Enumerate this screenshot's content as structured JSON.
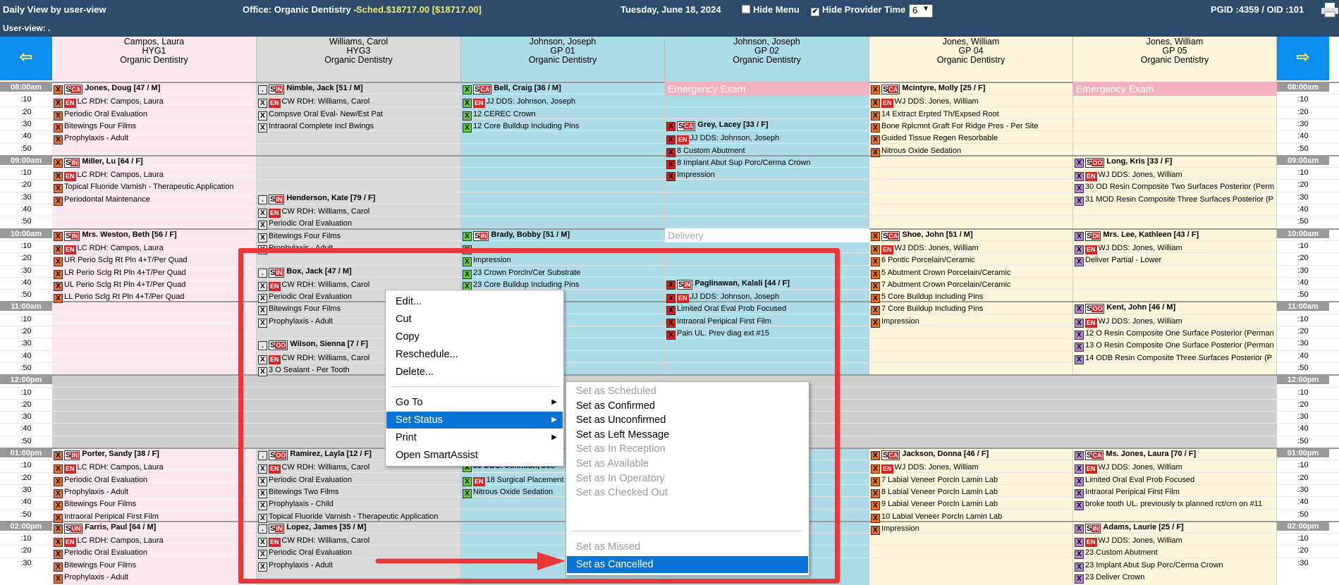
{
  "topbar": {
    "view_title": "Daily View by user-view",
    "office_label": "Office: Organic Dentistry -",
    "sched_label": "Sched.$18717.00 [$18717.00]",
    "date": "Tuesday, June 18, 2024",
    "hide_menu": "Hide Menu",
    "hide_menu_checked": false,
    "hide_provider_time": "Hide Provider Time",
    "hide_provider_checked": true,
    "columns_select": "6",
    "ids": "PGID :4359  /  OID :101",
    "user_view": "User-view: .",
    "nav_left": "⇦",
    "nav_right": "⇨"
  },
  "columns": [
    {
      "name": "Campos, Laura",
      "code": "HYG1",
      "office": "Organic Dentistry",
      "bg": "#fce8f0"
    },
    {
      "name": "Williams, Carol",
      "code": "HYG3",
      "office": "Organic Dentistry",
      "bg": "#d9d9d9"
    },
    {
      "name": "Johnson, Joseph",
      "code": "GP 01",
      "office": "Organic Dentistry",
      "bg": "#acdde6"
    },
    {
      "name": "Johnson, Joseph",
      "code": "GP 02",
      "office": "Organic Dentistry",
      "bg": "#acdde6"
    },
    {
      "name": "Jones, William",
      "code": "GP 04",
      "office": "Organic Dentistry",
      "bg": "#fdf6dc"
    },
    {
      "name": "Jones, William",
      "code": "GP 05",
      "office": "Organic Dentistry",
      "bg": "#fdf6dc"
    }
  ],
  "times": [
    "08:00am",
    ":10",
    ":20",
    ":30",
    ":40",
    ":50",
    "09:00am",
    ":10",
    ":20",
    ":30",
    ":40",
    ":50",
    "10:00am",
    ":10",
    ":20",
    ":30",
    ":40",
    ":50",
    "11:00am",
    ":10",
    ":20",
    ":30",
    ":40",
    ":50",
    "12:00pm",
    ":10",
    ":20",
    ":30",
    ":40",
    ":50",
    "01:00pm",
    ":10",
    ":20",
    ":30",
    ":40",
    ":50",
    "02:00pm",
    ":10",
    ":20",
    ":30"
  ],
  "appointments": [
    {
      "col": 0,
      "row": 0,
      "lines": [
        "Jones, Doug [47 / M]",
        "LC RDH: Campos, Laura",
        "Periodic Oral Evaluation",
        "Bitewings Four Films",
        "Prophylaxis - Adult"
      ],
      "badge": "CA"
    },
    {
      "col": 0,
      "row": 6,
      "lines": [
        "Miller, Lu [64 / F]",
        "LC RDH: Campos, Laura",
        "Topical Fluoride Varnish - Therapeutic Application",
        "Periodontal Maintenance"
      ],
      "badge": "IN"
    },
    {
      "col": 0,
      "row": 12,
      "lines": [
        "Mrs. Weston, Beth [56 / F]",
        "LC RDH: Campos, Laura",
        "UR Perio Sclg Rt Pln 4+T/Per Quad",
        "LR Perio Sclg Rt Pln 4+T/Per Quad",
        "UL Perio Sclg Rt Pln 4+T/Per Quad",
        "LL Perio Sclg Rt Pln 4+T/Per Quad"
      ],
      "badge": "IN"
    },
    {
      "col": 0,
      "row": 30,
      "lines": [
        "Porter, Sandy [38 / F]",
        "LC RDH: Campos, Laura",
        "Periodic Oral Evaluation",
        "Prophylaxis - Adult",
        "Bitewings Four Films",
        "Intraoral Peripical First Film"
      ],
      "badge": "IN"
    },
    {
      "col": 0,
      "row": 36,
      "lines": [
        "Farris, Paul [64 / M]",
        "LC RDH: Campos, Laura",
        "Periodic Oral Evaluation",
        "Bitewings Four Films",
        "Prophylaxis - Adult"
      ],
      "badge": "UN"
    },
    {
      "col": 1,
      "row": 0,
      "lines": [
        "Nimble, Jack [51 / M]",
        "CW RDH: Williams, Carol",
        "Compsve Oral Eval- New/Est Pat",
        "Intraoral Complete Incl Bwings"
      ],
      "badge": "IN"
    },
    {
      "col": 1,
      "row": 9,
      "lines": [
        "Henderson, Kate [79 / F]",
        "CW RDH: Williams, Carol",
        "Periodic Oral Evaluation",
        "Bitewings Four Films",
        "Prophylaxis - Adult"
      ],
      "badge": "IN"
    },
    {
      "col": 1,
      "row": 15,
      "lines": [
        "Box, Jack [47 / M]",
        "CW RDH: Williams, Carol",
        "Periodic Oral Evaluation",
        "Bitewings Four Films",
        "Prophylaxis - Adult"
      ],
      "badge": "IN"
    },
    {
      "col": 1,
      "row": 21,
      "lines": [
        "Wilson, Sienna [7 / F]",
        "CW RDH: Williams, Carol",
        "3 O Sealant - Per Tooth"
      ],
      "badge": "OO"
    },
    {
      "col": 1,
      "row": 30,
      "lines": [
        "Ramirez, Layla [12 / F]",
        "CW RDH: Williams, Carol",
        "Periodic Oral Evaluation",
        "Bitewings Two Films",
        "Prophylaxis - Child",
        "Topical Fluoride Varnish - Therapeutic Application"
      ],
      "badge": "OO"
    },
    {
      "col": 1,
      "row": 36,
      "lines": [
        "Lopez, James [35 / M]",
        "CW RDH: Williams, Carol",
        "Periodic Oral Evaluation",
        "Prophylaxis - Adult"
      ],
      "badge": "IN"
    },
    {
      "col": 2,
      "row": 0,
      "lines": [
        "Bell, Craig [36 / M]",
        "JJ DDS: Johnson, Joseph",
        "12 CEREC Crown",
        "12 Core Buildup Including Pins"
      ],
      "badge": "CA"
    },
    {
      "col": 2,
      "row": 12,
      "lines": [
        "Brady, Bobby [51 / M]",
        "",
        "Impression",
        "23 Crown Porcln/Cer Substrate",
        "23 Core Buildup Including Pins"
      ],
      "badge": "IN"
    },
    {
      "col": 2,
      "row": 31,
      "lines": [
        "JJ DDS: Johnson, Jos",
        "18 Surgical Placement Im",
        "Nitrous Oxide Sedation"
      ],
      "badge": ""
    },
    {
      "col": 3,
      "row": 3,
      "lines": [
        "Grey, Lacey [33 / F]",
        "JJ DDS: Johnson, Joseph",
        "8 Custom Abutment",
        "8 Implant Abut Sup Porc/Cerma Crown",
        "Impression"
      ],
      "badge": "CA"
    },
    {
      "col": 3,
      "row": 16,
      "lines": [
        "Paglinawan, Kalali [44 / F]",
        "JJ DDS: Johnson, Joseph",
        "Limited Oral Eval Prob Focused",
        "Intraoral Peripical First Film",
        "Pain UL. Prev diag ext #15"
      ],
      "badge": "IN"
    },
    {
      "col": 4,
      "row": 0,
      "lines": [
        "Mcintyre, Molly [25 / F]",
        "WJ DDS: Jones, William",
        "14 Extract Erpted Th/Expsed Root",
        "Bone Rplcmnt Graft For Ridge Pres - Per Site",
        "Guided Tissue Regen Resorbable",
        "Nitrous Oxide Sedation"
      ],
      "badge": "CA"
    },
    {
      "col": 4,
      "row": 12,
      "lines": [
        "Shoe, John [51 / M]",
        "WJ DDS: Jones, William",
        "6 Pontic Porcelain/Ceramic",
        "5 Abutment Crown Porcelain/Ceramic",
        "7 Abutment Crown Porcelain/Ceramic",
        "5 Core Buildup Including Pins",
        "7 Core Buildup Including Pins",
        "Impression"
      ],
      "badge": "CA"
    },
    {
      "col": 4,
      "row": 30,
      "lines": [
        "Jackson, Donna [46 / F]",
        "WJ DDS: Jones, William",
        "7 Labial Veneer Porcln Lamin Lab",
        "8 Labial Veneer Porcln Lamin Lab",
        "9 Labial Veneer Porcln Lamin Lab",
        "10 Labial Veneer Porcln Lamin Lab",
        "Impression"
      ],
      "badge": "CA"
    },
    {
      "col": 5,
      "row": 6,
      "lines": [
        "Long, Kris [33 / F]",
        "WJ DDS: Jones, William",
        "30 OD Resin Composite Two Surfaces Posterior (Perm",
        "31 MOD Resin Composite Three Surfaces Posterior (P"
      ],
      "badge": "OO"
    },
    {
      "col": 5,
      "row": 12,
      "lines": [
        "Mrs. Lee, Kathleen [43 / F]",
        "WJ DDS: Jones, William",
        "Deliver Partial - Lower"
      ],
      "badge": "DI"
    },
    {
      "col": 5,
      "row": 18,
      "lines": [
        "Kent, John [46 / M]",
        "WJ DDS: Jones, William",
        "12 O Resin Composite One Surface Posterior (Perman",
        "13 O Resin Composite One Surface Posterior (Perman",
        "14 ODB Resin Composite Three Surfaces Posterior (P"
      ],
      "badge": "OO"
    },
    {
      "col": 5,
      "row": 30,
      "lines": [
        "Ms. Jones, Laura [70 / F]",
        "WJ DDS: Jones, William",
        "Limited Oral Eval Prob Focused",
        "Intraoral Peripical First Film",
        "broke tooth UL. previously tx planned rct/crn on #11"
      ],
      "badge": "CA"
    },
    {
      "col": 5,
      "row": 36,
      "lines": [
        "Adams, Laurie [25 / F]",
        "WJ DDS: Jones, William",
        "23 Custom Abutment",
        "23 Implant Abut Sup Porc/Cerma Crown",
        "23 Deliver Crown"
      ],
      "badge": "IN"
    }
  ],
  "blocks": [
    {
      "col": 3,
      "row": 0,
      "label": "Emergency Exam"
    },
    {
      "col": 5,
      "row": 0,
      "label": "Emergency Exam"
    },
    {
      "col": 3,
      "row": 12,
      "label": "Delivery"
    }
  ],
  "context_menu": {
    "items": [
      "Edit...",
      "Cut",
      "Copy",
      "Reschedule...",
      "Delete..."
    ],
    "items2": [
      "Go To",
      "Set Status",
      "Print",
      "Open SmartAssist"
    ]
  },
  "status_menu": {
    "items": [
      {
        "label": "Set as Scheduled",
        "enabled": false
      },
      {
        "label": "Set as Confirmed",
        "enabled": true
      },
      {
        "label": "Set as Unconfirmed",
        "enabled": true
      },
      {
        "label": "Set as Left Message",
        "enabled": true
      },
      {
        "label": "Set as In Reception",
        "enabled": false
      },
      {
        "label": "Set as Available",
        "enabled": false
      },
      {
        "label": "Set as In Operatory",
        "enabled": false
      },
      {
        "label": "Set as Checked Out",
        "enabled": false
      }
    ],
    "missed": "Set as Missed",
    "cancelled": "Set as Cancelled"
  },
  "colors": {
    "highlight": "#0a74d6",
    "annotation": "#e9383c",
    "header": "#2e4a6b"
  }
}
